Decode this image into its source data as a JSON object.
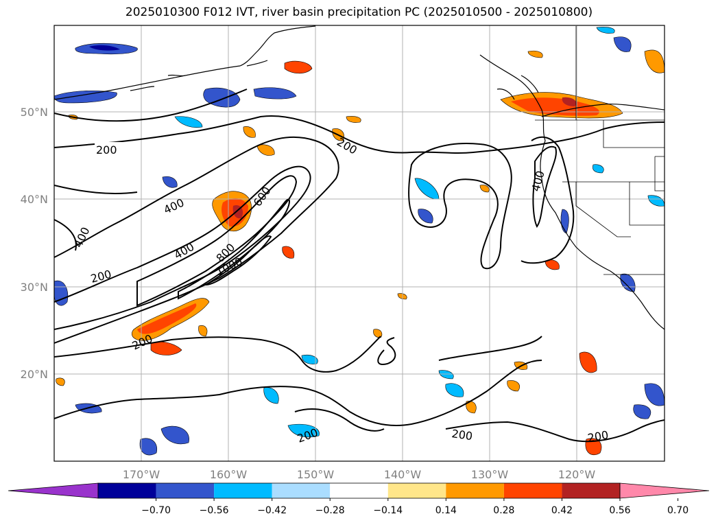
{
  "title": "2025010300 F012 IVT, river basin precipitation PC (2025010500 - 2025010800)",
  "colors": {
    "bins": [
      "#9933cc",
      "#000099",
      "#3355cc",
      "#00bbff",
      "#aaddff",
      "#ffffff",
      "#ffe68a",
      "#ff9900",
      "#ff4400",
      "#b22222",
      "#ff88aa"
    ],
    "contour": "#000000",
    "grid": "#b0b0b0",
    "coast": "#000000"
  },
  "map": {
    "lat_ticks": [
      "20°N",
      "30°N",
      "40°N",
      "50°N"
    ],
    "lon_ticks": [
      "170°W",
      "160°W",
      "150°W",
      "140°W",
      "130°W",
      "120°W"
    ]
  },
  "contour_labels": [
    "200",
    "400",
    "400",
    "400",
    "600",
    "800",
    "1000",
    "200",
    "200",
    "400",
    "200",
    "200",
    "200",
    "200"
  ],
  "colorbar": {
    "labels": [
      "−0.70",
      "−0.56",
      "−0.42",
      "−0.28",
      "−0.14",
      "0.14",
      "0.28",
      "0.42",
      "0.56",
      "0.70"
    ]
  },
  "chart_data": {
    "type": "heatmap",
    "title": "2025010300 F012 IVT, river basin precipitation PC (2025010500 - 2025010800)",
    "contour_levels": [
      200,
      400,
      600,
      800,
      1000
    ],
    "colorbar_bounds": [
      -0.7,
      -0.56,
      -0.42,
      -0.28,
      -0.14,
      0.14,
      0.28,
      0.42,
      0.56,
      0.7
    ],
    "colorbar_extend": "both",
    "lat_range": [
      10,
      60
    ],
    "lon_range": [
      -180,
      -110
    ]
  }
}
